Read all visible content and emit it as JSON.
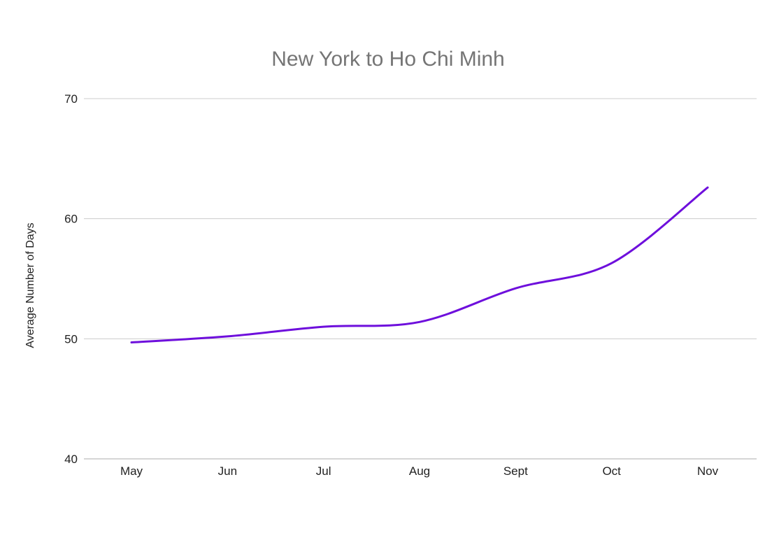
{
  "chart_data": {
    "type": "line",
    "title": "New York to Ho Chi Minh",
    "xlabel": "",
    "ylabel": "Average Number of Days",
    "categories": [
      "May",
      "Jun",
      "Jul",
      "Aug",
      "Sept",
      "Oct",
      "Nov"
    ],
    "series": [
      {
        "values": [
          49.7,
          50.2,
          51.0,
          51.4,
          54.2,
          56.3,
          62.6
        ],
        "color": "#6e0fdc"
      }
    ],
    "ylim": [
      40,
      70
    ],
    "yticks": [
      40,
      50,
      60,
      70
    ],
    "grid": true,
    "legend": "none"
  }
}
